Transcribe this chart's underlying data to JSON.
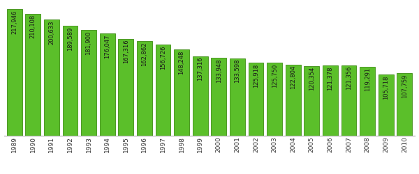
{
  "years": [
    "1989",
    "1990",
    "1991",
    "1992",
    "1993",
    "1994",
    "1995",
    "1996",
    "1997",
    "1998",
    "1999",
    "2000",
    "2001",
    "2002",
    "2003",
    "2004",
    "2005",
    "2006",
    "2007",
    "2008",
    "2009",
    "2010"
  ],
  "values": [
    217946,
    210108,
    200633,
    189589,
    181900,
    176047,
    167316,
    162862,
    156726,
    148248,
    137316,
    133948,
    133598,
    125918,
    125750,
    122804,
    120354,
    121378,
    121356,
    119291,
    105718,
    107759
  ],
  "bar_color": "#5bbf2a",
  "bar_edge_color": "#3d8c14",
  "label_color": "#1a1a1a",
  "label_fontsize": 6.0,
  "background_color": "#ffffff",
  "ylim": [
    0,
    228000
  ],
  "bar_width": 0.82
}
